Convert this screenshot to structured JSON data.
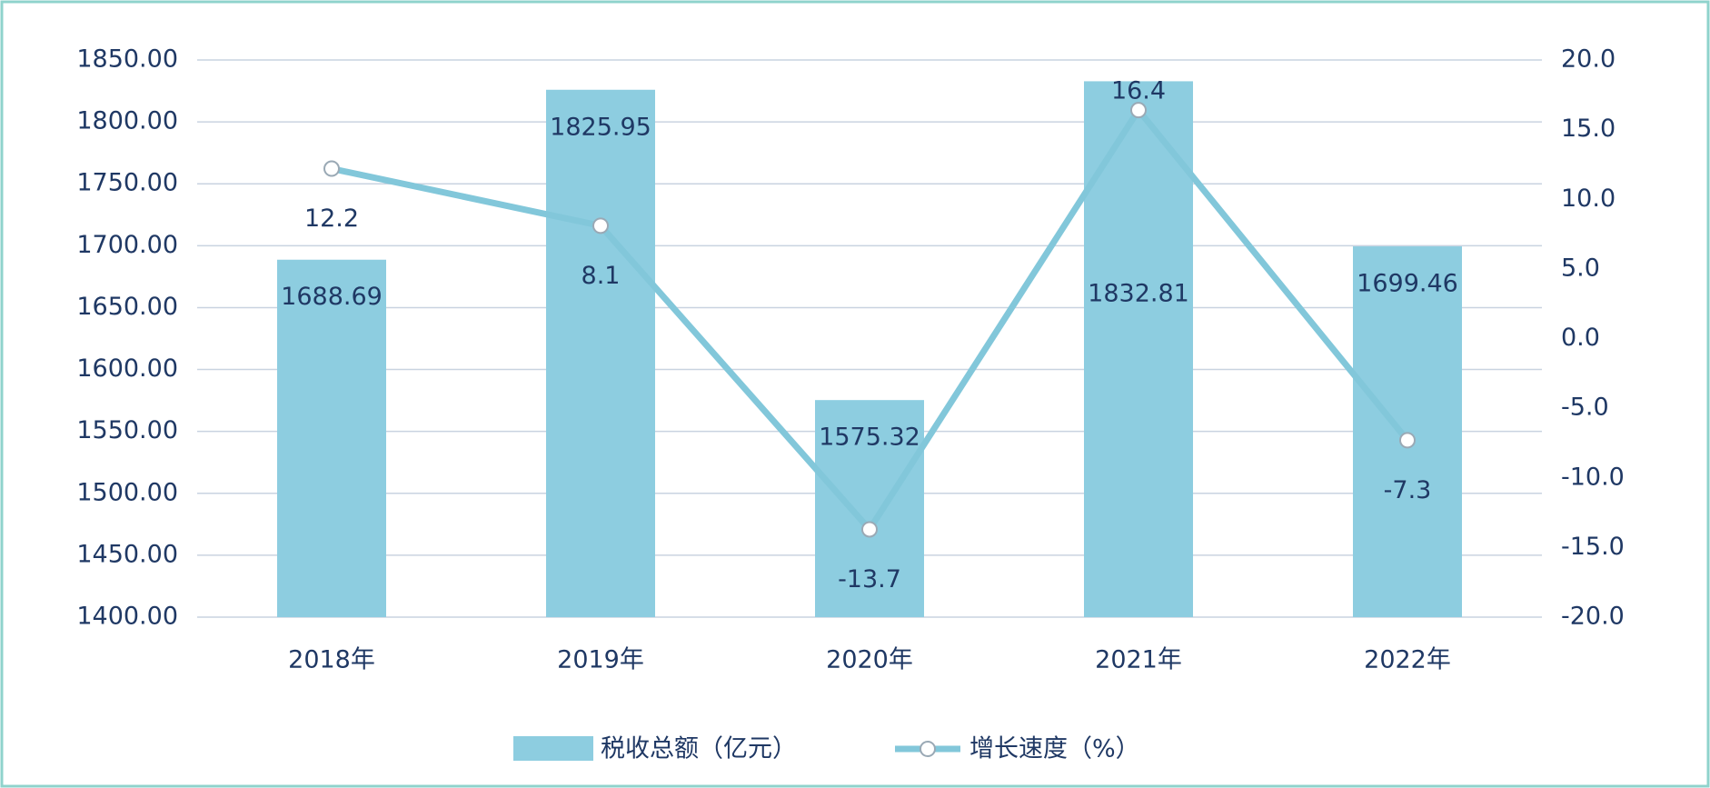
{
  "chart_data": {
    "type": "bar",
    "categories": [
      "2018年",
      "2019年",
      "2020年",
      "2021年",
      "2022年"
    ],
    "series": [
      {
        "name": "税收总额（亿元）",
        "type": "bar",
        "color": "#8dcde0",
        "values": [
          1688.69,
          1825.95,
          1575.32,
          1832.81,
          1699.46
        ]
      },
      {
        "name": "增长速度（%）",
        "type": "line",
        "axis": "y2",
        "color": "#82c7da",
        "values": [
          12.2,
          8.1,
          -13.7,
          16.4,
          -7.3
        ]
      }
    ],
    "ylim": [
      1400,
      1850
    ],
    "yticks": [
      {
        "value": 1400,
        "label": "1400.00"
      },
      {
        "value": 1450,
        "label": "1450.00"
      },
      {
        "value": 1500,
        "label": "1500.00"
      },
      {
        "value": 1550,
        "label": "1550.00"
      },
      {
        "value": 1600,
        "label": "1600.00"
      },
      {
        "value": 1650,
        "label": "1650.00"
      },
      {
        "value": 1700,
        "label": "1700.00"
      },
      {
        "value": 1750,
        "label": "1750.00"
      },
      {
        "value": 1800,
        "label": "1800.00"
      },
      {
        "value": 1850,
        "label": "1850.00"
      }
    ],
    "y2lim": [
      -20,
      20
    ],
    "y2ticks": [
      {
        "value": -20,
        "label": "-20.0"
      },
      {
        "value": -15,
        "label": "-15.0"
      },
      {
        "value": -10,
        "label": "-10.0"
      },
      {
        "value": -5,
        "label": "-5.0"
      },
      {
        "value": 0,
        "label": "0.0"
      },
      {
        "value": 5,
        "label": "5.0"
      },
      {
        "value": 10,
        "label": "10.0"
      },
      {
        "value": 15,
        "label": "15.0"
      },
      {
        "value": 20,
        "label": "20.0"
      }
    ],
    "grid": true,
    "legend": "bottom"
  }
}
